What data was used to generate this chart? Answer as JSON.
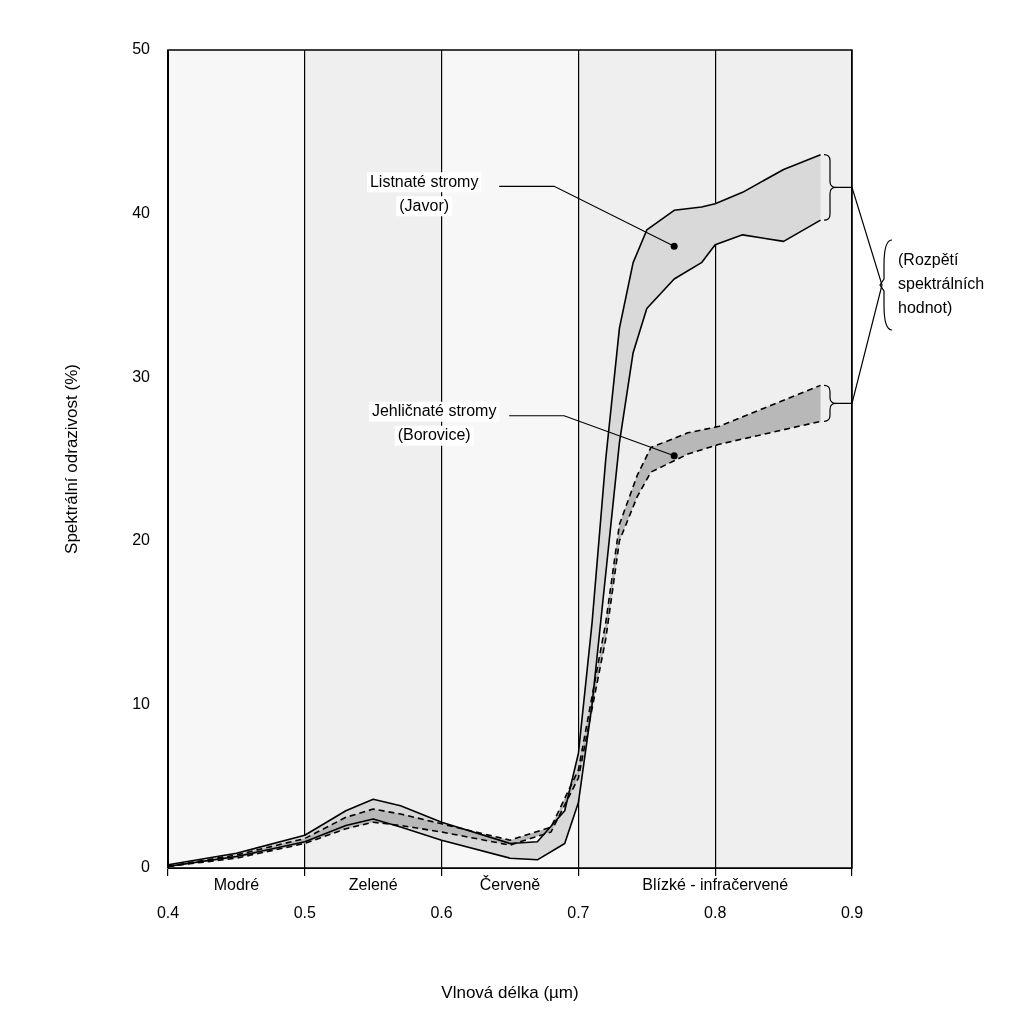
{
  "chart_data": {
    "type": "line",
    "xlabel": "Vlnová délka (µm)",
    "ylabel": "Spektrální odrazivost (%)",
    "xlim": [
      0.4,
      0.9
    ],
    "xticks": [
      0.4,
      0.5,
      0.6,
      0.7,
      0.8,
      0.9
    ],
    "ylim": [
      0,
      50
    ],
    "yticks": [
      0,
      10,
      20,
      30,
      40,
      50
    ],
    "grid": "x",
    "legend": false,
    "marker": "none",
    "series": [
      {
        "color": "#000000",
        "line_style": "solid",
        "x": [
          0.4,
          0.45,
          0.5,
          0.53,
          0.55,
          0.57,
          0.6,
          0.65,
          0.67,
          0.69,
          0.7,
          0.71,
          0.72,
          0.73,
          0.74,
          0.75,
          0.77,
          0.79,
          0.8,
          0.82,
          0.85,
          0.877
        ],
        "values": [
          0.2,
          0.9,
          2.0,
          3.5,
          4.2,
          3.8,
          2.8,
          1.5,
          1.6,
          3.5,
          7,
          15,
          25,
          33,
          37,
          39,
          40.2,
          40.4,
          40.6,
          41.3,
          42.7,
          43.6
        ],
        "upper": [
          0.2,
          0.9,
          2.0,
          3.5,
          4.2,
          3.8,
          2.8,
          1.5,
          1.6,
          3.5,
          7,
          15,
          25,
          33,
          37,
          39,
          40.2,
          40.4,
          40.6,
          41.3,
          42.7,
          43.6
        ],
        "lower": [
          0.1,
          0.7,
          1.6,
          2.6,
          3.0,
          2.5,
          1.7,
          0.6,
          0.5,
          1.5,
          4,
          10,
          18,
          26,
          31.5,
          34.2,
          36,
          37,
          38.1,
          38.7,
          38.3,
          39.6
        ]
      },
      {
        "color": "#000000",
        "line_style": "solid",
        "x": [
          0.4,
          0.45,
          0.5,
          0.53,
          0.55,
          0.57,
          0.6,
          0.65,
          0.67,
          0.69,
          0.7,
          0.71,
          0.72,
          0.73,
          0.74,
          0.75,
          0.77,
          0.79,
          0.8,
          0.82,
          0.85,
          0.877
        ],
        "values": [
          0.1,
          0.7,
          1.6,
          2.6,
          3.0,
          2.5,
          1.7,
          0.6,
          0.5,
          1.5,
          4,
          10,
          18,
          26,
          31.5,
          34.2,
          36,
          37,
          38.1,
          38.7,
          38.3,
          39.6
        ]
      },
      {
        "color": "#000000",
        "line_style": "dashed",
        "x": [
          0.4,
          0.45,
          0.5,
          0.53,
          0.55,
          0.57,
          0.6,
          0.65,
          0.68,
          0.7,
          0.72,
          0.73,
          0.743,
          0.753,
          0.78,
          0.803,
          0.877
        ],
        "values": [
          0.1,
          0.8,
          1.8,
          3.1,
          3.6,
          3.3,
          2.7,
          1.7,
          2.5,
          6,
          15,
          21,
          24,
          25.7,
          26.6,
          27,
          29.5
        ],
        "upper": [
          0.1,
          0.8,
          1.8,
          3.1,
          3.6,
          3.3,
          2.7,
          1.7,
          2.5,
          6,
          15,
          21,
          24,
          25.7,
          26.6,
          27,
          29.5
        ],
        "lower": [
          0.1,
          0.6,
          1.5,
          2.4,
          2.8,
          2.6,
          2.2,
          1.4,
          2.2,
          5.5,
          14,
          20,
          22.7,
          24.2,
          25.3,
          25.9,
          27.3
        ]
      },
      {
        "color": "#000000",
        "line_style": "dashed",
        "x": [
          0.4,
          0.45,
          0.5,
          0.53,
          0.55,
          0.57,
          0.6,
          0.65,
          0.68,
          0.7,
          0.72,
          0.73,
          0.743,
          0.753,
          0.78,
          0.803,
          0.877
        ],
        "values": [
          0.1,
          0.6,
          1.5,
          2.4,
          2.8,
          2.6,
          2.2,
          1.4,
          2.2,
          5.5,
          14,
          20,
          22.7,
          24.2,
          25.3,
          25.9,
          27.3
        ]
      }
    ],
    "bands": [
      {
        "axis": "x",
        "from": 0.4,
        "to": 0.5,
        "label": "Modré",
        "color": "#f7f7f7"
      },
      {
        "axis": "x",
        "from": 0.5,
        "to": 0.6,
        "label": "Zelené",
        "color": "#efefef"
      },
      {
        "axis": "x",
        "from": 0.6,
        "to": 0.7,
        "label": "Červeně",
        "color": "#f7f7f7"
      },
      {
        "axis": "x",
        "from": 0.7,
        "to": 0.9,
        "label": "Blízké - infračervené",
        "color": "#efefef"
      }
    ],
    "annotations": [
      {
        "text": "Listnaté stromy\n(Javor)",
        "x": 0.77,
        "y": 38
      },
      {
        "text": "Jehličnaté stromy\n(Borovice)",
        "x": 0.77,
        "y": 25.2
      },
      "(Rozpětí\nspektrálních\nhodnot)"
    ]
  }
}
